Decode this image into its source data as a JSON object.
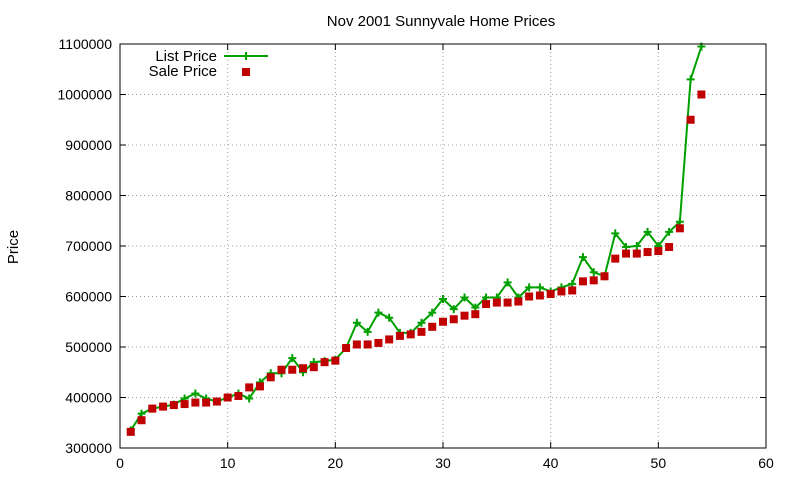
{
  "chart_data": {
    "type": "line",
    "title": "Nov 2001 Sunnyvale Home Prices",
    "xlabel": "",
    "ylabel": "Price",
    "xlim": [
      0,
      60
    ],
    "ylim": [
      300000,
      1100000
    ],
    "x_ticks": [
      0,
      10,
      20,
      30,
      40,
      50,
      60
    ],
    "y_ticks": [
      300000,
      400000,
      500000,
      600000,
      700000,
      800000,
      900000,
      1000000,
      1100000
    ],
    "grid": true,
    "legend_position": "top-left",
    "x": [
      1,
      2,
      3,
      4,
      5,
      6,
      7,
      8,
      9,
      10,
      11,
      12,
      13,
      14,
      15,
      16,
      17,
      18,
      19,
      20,
      21,
      22,
      23,
      24,
      25,
      26,
      27,
      28,
      29,
      30,
      31,
      32,
      33,
      34,
      35,
      36,
      37,
      38,
      39,
      40,
      41,
      42,
      43,
      44,
      45,
      46,
      47,
      48,
      49,
      50,
      51,
      52,
      53,
      54
    ],
    "series": [
      {
        "name": "List Price",
        "style": "linespoints",
        "marker": "plus",
        "color": "#00a000",
        "values": [
          335000,
          368000,
          378000,
          382000,
          386000,
          398000,
          408000,
          398000,
          392000,
          400000,
          408000,
          398000,
          430000,
          448000,
          448000,
          478000,
          450000,
          470000,
          472000,
          475000,
          498000,
          548000,
          530000,
          568000,
          558000,
          528000,
          528000,
          548000,
          568000,
          595000,
          575000,
          598000,
          578000,
          598000,
          598000,
          628000,
          598000,
          618000,
          618000,
          610000,
          618000,
          625000,
          678000,
          648000,
          640000,
          725000,
          698000,
          700000,
          728000,
          700000,
          728000,
          748000,
          1030000,
          1095000
        ]
      },
      {
        "name": "Sale Price",
        "style": "points",
        "marker": "square",
        "color": "#c00000",
        "values": [
          332000,
          355000,
          378000,
          382000,
          385000,
          387000,
          390000,
          390000,
          392000,
          400000,
          403000,
          420000,
          422000,
          440000,
          455000,
          455000,
          458000,
          460000,
          470000,
          473000,
          498000,
          505000,
          505000,
          508000,
          515000,
          522000,
          525000,
          530000,
          540000,
          550000,
          555000,
          562000,
          565000,
          585000,
          588000,
          588000,
          590000,
          600000,
          602000,
          605000,
          610000,
          612000,
          630000,
          632000,
          640000,
          675000,
          685000,
          685000,
          688000,
          690000,
          698000,
          735000,
          950000,
          1000000
        ]
      }
    ]
  }
}
